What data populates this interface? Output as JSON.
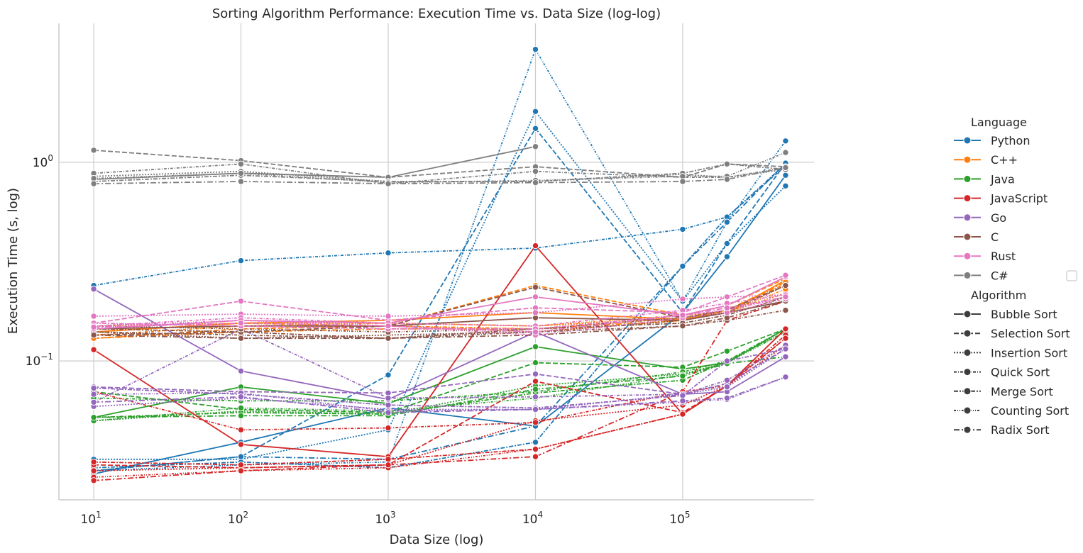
{
  "chart_data": {
    "type": "line",
    "title": "Sorting Algorithm Performance: Execution Time vs. Data Size (log-log)",
    "xlabel": "Data Size (log)",
    "ylabel": "Execution Time (s, log)",
    "x_scale": "log",
    "y_scale": "log",
    "x": [
      10,
      100,
      1000,
      10000,
      100000,
      200000,
      500000
    ],
    "x_ticks": [
      {
        "base": "10",
        "exp": "1",
        "value": 10
      },
      {
        "base": "10",
        "exp": "2",
        "value": 100
      },
      {
        "base": "10",
        "exp": "3",
        "value": 1000
      },
      {
        "base": "10",
        "exp": "4",
        "value": 10000
      },
      {
        "base": "10",
        "exp": "5",
        "value": 100000
      }
    ],
    "y_ticks": [
      {
        "base": "10",
        "exp": "0",
        "value": 1
      },
      {
        "base": "10",
        "exp": "−1",
        "value": 0.1
      }
    ],
    "xlim": [
      5.8,
      780000
    ],
    "ylim": [
      0.02,
      5.0
    ],
    "grid": true,
    "legend": {
      "position": "right",
      "language_title": "Language",
      "algorithm_title": "Algorithm",
      "languages": [
        {
          "name": "Python",
          "color": "#1f77b4"
        },
        {
          "name": "C++",
          "color": "#ff7f0e"
        },
        {
          "name": "Java",
          "color": "#2ca02c"
        },
        {
          "name": "JavaScript",
          "color": "#d62728"
        },
        {
          "name": "Go",
          "color": "#9467bd"
        },
        {
          "name": "C",
          "color": "#8c564b"
        },
        {
          "name": "Rust",
          "color": "#e377c2"
        },
        {
          "name": "C#",
          "color": "#7f7f7f"
        }
      ],
      "algorithms": [
        {
          "name": "Bubble Sort",
          "dash": ""
        },
        {
          "name": "Selection Sort",
          "dash": "7,3"
        },
        {
          "name": "Insertion Sort",
          "dash": "2,2"
        },
        {
          "name": "Quick Sort",
          "dash": "4,2,1,2"
        },
        {
          "name": "Merge Sort",
          "dash": "6,2,2,2"
        },
        {
          "name": "Counting Sort",
          "dash": "3,2,1,2,1,2"
        },
        {
          "name": "Radix Sort",
          "dash": "8,3,2,3"
        }
      ]
    },
    "series": [
      {
        "language": "Python",
        "algorithm": "Bubble Sort",
        "values": [
          0.027,
          0.039,
          0.058,
          0.047,
          0.175,
          0.335,
          0.86
        ]
      },
      {
        "language": "Python",
        "algorithm": "Selection Sort",
        "values": [
          0.028,
          0.033,
          0.085,
          1.48,
          0.175,
          0.39,
          0.99
        ]
      },
      {
        "language": "Python",
        "algorithm": "Insertion Sort",
        "values": [
          0.032,
          0.032,
          0.045,
          1.8,
          0.2,
          0.39,
          0.76
        ]
      },
      {
        "language": "Python",
        "algorithm": "Quick Sort",
        "values": [
          0.24,
          0.32,
          0.35,
          0.37,
          0.46,
          0.53,
          0.96
        ]
      },
      {
        "language": "Python",
        "algorithm": "Merge Sort",
        "values": [
          0.029,
          0.031,
          0.029,
          0.039,
          0.3,
          0.53,
          0.98
        ]
      },
      {
        "language": "Python",
        "algorithm": "Counting Sort",
        "values": [
          0.028,
          0.03,
          0.031,
          3.7,
          0.2,
          0.5,
          1.28
        ]
      },
      {
        "language": "Python",
        "algorithm": "Radix Sort",
        "values": [
          0.028,
          0.033,
          0.032,
          0.047,
          0.3,
          0.5,
          0.99
        ]
      },
      {
        "language": "C++",
        "algorithm": "Bubble Sort",
        "values": [
          0.14,
          0.155,
          0.16,
          0.175,
          0.162,
          0.175,
          0.255
        ]
      },
      {
        "language": "C++",
        "algorithm": "Selection Sort",
        "values": [
          0.13,
          0.145,
          0.15,
          0.24,
          0.17,
          0.19,
          0.26
        ]
      },
      {
        "language": "C++",
        "algorithm": "Insertion Sort",
        "values": [
          0.15,
          0.155,
          0.155,
          0.15,
          0.165,
          0.175,
          0.22
        ]
      },
      {
        "language": "C++",
        "algorithm": "Quick Sort",
        "values": [
          0.135,
          0.15,
          0.15,
          0.14,
          0.16,
          0.175,
          0.24
        ]
      },
      {
        "language": "C++",
        "algorithm": "Merge Sort",
        "values": [
          0.14,
          0.155,
          0.15,
          0.145,
          0.165,
          0.18,
          0.245
        ]
      },
      {
        "language": "C++",
        "algorithm": "Counting Sort",
        "values": [
          0.145,
          0.15,
          0.155,
          0.15,
          0.17,
          0.175,
          0.23
        ]
      },
      {
        "language": "C++",
        "algorithm": "Radix Sort",
        "values": [
          0.13,
          0.14,
          0.145,
          0.145,
          0.16,
          0.18,
          0.25
        ]
      },
      {
        "language": "Java",
        "algorithm": "Bubble Sort",
        "values": [
          0.052,
          0.074,
          0.061,
          0.118,
          0.091,
          0.098,
          0.145
        ]
      },
      {
        "language": "Java",
        "algorithm": "Selection Sort",
        "values": [
          0.07,
          0.057,
          0.055,
          0.098,
          0.093,
          0.112,
          0.145
        ]
      },
      {
        "language": "Java",
        "algorithm": "Insertion Sort",
        "values": [
          0.05,
          0.056,
          0.054,
          0.075,
          0.086,
          0.098,
          0.145
        ]
      },
      {
        "language": "Java",
        "algorithm": "Quick Sort",
        "values": [
          0.065,
          0.063,
          0.063,
          0.07,
          0.088,
          0.1,
          0.14
        ]
      },
      {
        "language": "Java",
        "algorithm": "Merge Sort",
        "values": [
          0.052,
          0.055,
          0.054,
          0.069,
          0.08,
          0.1,
          0.145
        ]
      },
      {
        "language": "Java",
        "algorithm": "Counting Sort",
        "values": [
          0.05,
          0.058,
          0.056,
          0.065,
          0.085,
          0.098,
          0.14
        ]
      },
      {
        "language": "Java",
        "algorithm": "Radix Sort",
        "values": [
          0.052,
          0.053,
          0.053,
          0.072,
          0.084,
          0.097,
          0.105
        ]
      },
      {
        "language": "JavaScript",
        "algorithm": "Bubble Sort",
        "values": [
          0.114,
          0.038,
          0.033,
          0.38,
          0.054,
          0.075,
          0.145
        ]
      },
      {
        "language": "JavaScript",
        "algorithm": "Selection Sort",
        "values": [
          0.03,
          0.029,
          0.03,
          0.079,
          0.055,
          0.075,
          0.13
        ]
      },
      {
        "language": "JavaScript",
        "algorithm": "Insertion Sort",
        "values": [
          0.028,
          0.029,
          0.03,
          0.05,
          0.06,
          0.075,
          0.12
        ]
      },
      {
        "language": "JavaScript",
        "algorithm": "Quick Sort",
        "values": [
          0.07,
          0.045,
          0.046,
          0.049,
          0.07,
          0.075,
          0.145
        ]
      },
      {
        "language": "JavaScript",
        "algorithm": "Merge Sort",
        "values": [
          0.031,
          0.03,
          0.032,
          0.036,
          0.054,
          0.075,
          0.135
        ]
      },
      {
        "language": "JavaScript",
        "algorithm": "Counting Sort",
        "values": [
          0.026,
          0.028,
          0.029,
          0.036,
          0.054,
          0.075,
          0.13
        ]
      },
      {
        "language": "JavaScript",
        "algorithm": "Radix Sort",
        "values": [
          0.025,
          0.028,
          0.03,
          0.033,
          0.07,
          0.16,
          0.2
        ]
      },
      {
        "language": "Go",
        "algorithm": "Bubble Sort",
        "values": [
          0.23,
          0.089,
          0.064,
          0.14,
          0.068,
          0.07,
          0.105
        ]
      },
      {
        "language": "Go",
        "algorithm": "Selection Sort",
        "values": [
          0.074,
          0.07,
          0.069,
          0.086,
          0.068,
          0.077,
          0.115
        ]
      },
      {
        "language": "Go",
        "algorithm": "Insertion Sort",
        "values": [
          0.059,
          0.065,
          0.057,
          0.057,
          0.068,
          0.074,
          0.115
        ]
      },
      {
        "language": "Go",
        "algorithm": "Quick Sort",
        "values": [
          0.062,
          0.145,
          0.065,
          0.066,
          0.068,
          0.08,
          0.12
        ]
      },
      {
        "language": "Go",
        "algorithm": "Merge Sort",
        "values": [
          0.073,
          0.068,
          0.06,
          0.058,
          0.067,
          0.1,
          0.115
        ]
      },
      {
        "language": "Go",
        "algorithm": "Counting Sort",
        "values": [
          0.068,
          0.069,
          0.056,
          0.057,
          0.062,
          0.064,
          0.083
        ]
      },
      {
        "language": "Go",
        "algorithm": "Radix Sort",
        "values": [
          0.062,
          0.066,
          0.055,
          0.057,
          0.063,
          0.065,
          0.083
        ]
      },
      {
        "language": "C",
        "algorithm": "Bubble Sort",
        "values": [
          0.145,
          0.15,
          0.15,
          0.165,
          0.16,
          0.175,
          0.2
        ]
      },
      {
        "language": "C",
        "algorithm": "Selection Sort",
        "values": [
          0.135,
          0.14,
          0.15,
          0.235,
          0.165,
          0.18,
          0.24
        ]
      },
      {
        "language": "C",
        "algorithm": "Insertion Sort",
        "values": [
          0.14,
          0.13,
          0.135,
          0.14,
          0.16,
          0.175,
          0.2
        ]
      },
      {
        "language": "C",
        "algorithm": "Quick Sort",
        "values": [
          0.14,
          0.135,
          0.13,
          0.14,
          0.15,
          0.16,
          0.18
        ]
      },
      {
        "language": "C",
        "algorithm": "Merge Sort",
        "values": [
          0.145,
          0.14,
          0.13,
          0.145,
          0.155,
          0.17,
          0.21
        ]
      },
      {
        "language": "C",
        "algorithm": "Counting Sort",
        "values": [
          0.15,
          0.145,
          0.14,
          0.145,
          0.165,
          0.175,
          0.24
        ]
      },
      {
        "language": "C",
        "algorithm": "Radix Sort",
        "values": [
          0.135,
          0.13,
          0.13,
          0.135,
          0.15,
          0.165,
          0.2
        ]
      },
      {
        "language": "Rust",
        "algorithm": "Bubble Sort",
        "values": [
          0.145,
          0.16,
          0.155,
          0.21,
          0.17,
          0.19,
          0.265
        ]
      },
      {
        "language": "Rust",
        "algorithm": "Selection Sort",
        "values": [
          0.155,
          0.2,
          0.16,
          0.185,
          0.175,
          0.21,
          0.27
        ]
      },
      {
        "language": "Rust",
        "algorithm": "Insertion Sort",
        "values": [
          0.168,
          0.172,
          0.168,
          0.175,
          0.205,
          0.21,
          0.215
        ]
      },
      {
        "language": "Rust",
        "algorithm": "Quick Sort",
        "values": [
          0.15,
          0.165,
          0.155,
          0.15,
          0.18,
          0.195,
          0.215
        ]
      },
      {
        "language": "Rust",
        "algorithm": "Merge Sort",
        "values": [
          0.155,
          0.15,
          0.145,
          0.145,
          0.17,
          0.18,
          0.21
        ]
      },
      {
        "language": "Rust",
        "algorithm": "Counting Sort",
        "values": [
          0.15,
          0.16,
          0.15,
          0.135,
          0.165,
          0.175,
          0.205
        ]
      },
      {
        "language": "Rust",
        "algorithm": "Radix Sort",
        "values": [
          0.148,
          0.155,
          0.15,
          0.14,
          0.17,
          0.185,
          0.21
        ]
      },
      {
        "language": "C#",
        "algorithm": "Bubble Sort",
        "values": [
          0.82,
          0.88,
          0.84,
          1.2,
          null,
          null,
          null
        ]
      },
      {
        "language": "C#",
        "algorithm": "Selection Sort",
        "values": [
          1.15,
          1.02,
          0.84,
          0.95,
          0.84,
          0.98,
          0.95
        ]
      },
      {
        "language": "C#",
        "algorithm": "Insertion Sort",
        "values": [
          0.85,
          0.9,
          0.8,
          0.8,
          0.87,
          0.84,
          0.92
        ]
      },
      {
        "language": "C#",
        "algorithm": "Quick Sort",
        "values": [
          0.88,
          0.98,
          0.78,
          0.9,
          0.84,
          0.84,
          0.94
        ]
      },
      {
        "language": "C#",
        "algorithm": "Merge Sort",
        "values": [
          0.8,
          0.86,
          0.8,
          0.8,
          0.88,
          0.98,
          0.92
        ]
      },
      {
        "language": "C#",
        "algorithm": "Counting Sort",
        "values": [
          0.83,
          0.88,
          0.79,
          0.81,
          0.85,
          0.85,
          1.12
        ]
      },
      {
        "language": "C#",
        "algorithm": "Radix Sort",
        "values": [
          0.78,
          0.8,
          0.78,
          0.79,
          0.8,
          0.82,
          0.94
        ]
      }
    ]
  }
}
